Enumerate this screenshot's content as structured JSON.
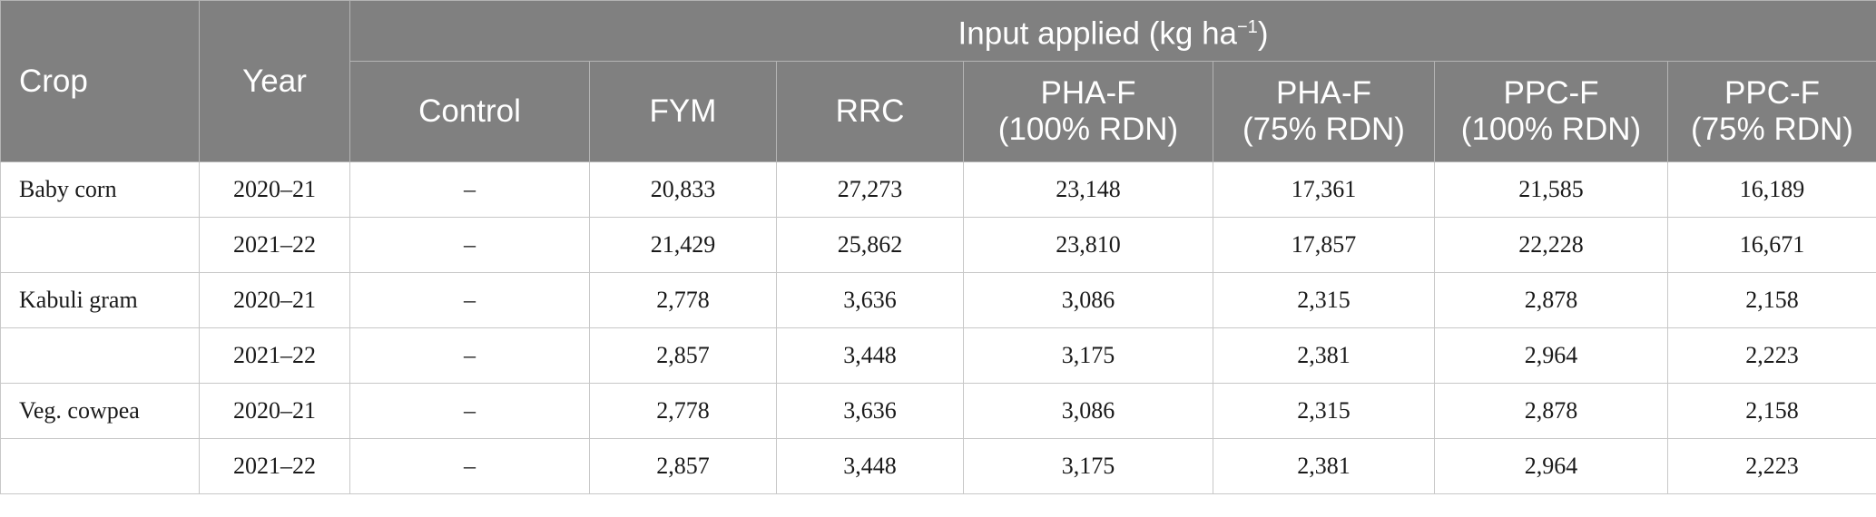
{
  "header": {
    "crop": "Crop",
    "year": "Year",
    "group_prefix": "Input applied (kg ha",
    "group_sup": "−1",
    "group_suffix": ")",
    "columns": [
      {
        "line1": "Control",
        "line2": ""
      },
      {
        "line1": "FYM",
        "line2": ""
      },
      {
        "line1": "RRC",
        "line2": ""
      },
      {
        "line1": "PHA-F",
        "line2": "(100% RDN)"
      },
      {
        "line1": "PHA-F",
        "line2": "(75% RDN)"
      },
      {
        "line1": "PPC-F",
        "line2": "(100% RDN)"
      },
      {
        "line1": "PPC-F",
        "line2": "(75% RDN)"
      }
    ]
  },
  "rows": [
    {
      "crop": "Baby corn",
      "year": "2020–21",
      "values": [
        "–",
        "20,833",
        "27,273",
        "23,148",
        "17,361",
        "21,585",
        "16,189"
      ]
    },
    {
      "crop": "",
      "year": "2021–22",
      "values": [
        "–",
        "21,429",
        "25,862",
        "23,810",
        "17,857",
        "22,228",
        "16,671"
      ]
    },
    {
      "crop": "Kabuli gram",
      "year": "2020–21",
      "values": [
        "–",
        "2,778",
        "3,636",
        "3,086",
        "2,315",
        "2,878",
        "2,158"
      ]
    },
    {
      "crop": "",
      "year": "2021–22",
      "values": [
        "–",
        "2,857",
        "3,448",
        "3,175",
        "2,381",
        "2,964",
        "2,223"
      ]
    },
    {
      "crop": "Veg. cowpea",
      "year": "2020–21",
      "values": [
        "–",
        "2,778",
        "3,636",
        "3,086",
        "2,315",
        "2,878",
        "2,158"
      ]
    },
    {
      "crop": "",
      "year": "2021–22",
      "values": [
        "–",
        "2,857",
        "3,448",
        "3,175",
        "2,381",
        "2,964",
        "2,223"
      ]
    }
  ]
}
